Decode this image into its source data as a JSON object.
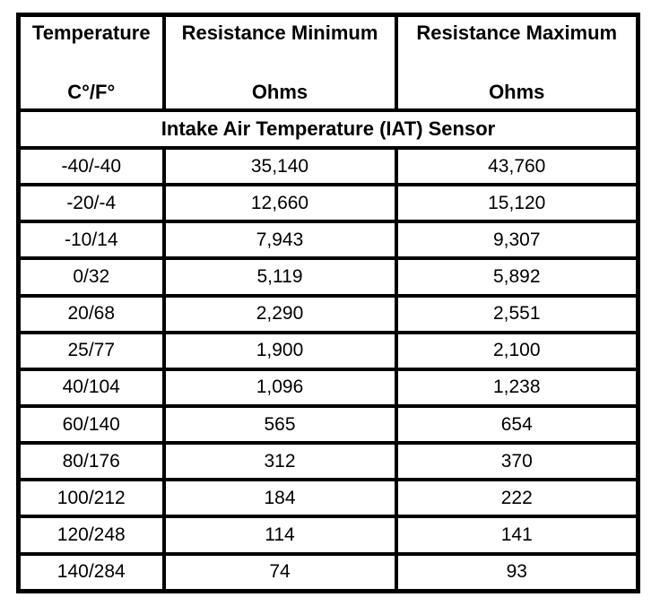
{
  "page": {
    "background_color": "#ffffff",
    "text_color": "#000000",
    "border_color": "#000000"
  },
  "chart_data": {
    "type": "table",
    "title": "Intake Air Temperature (IAT) Sensor",
    "columns": [
      {
        "title": "Temperature",
        "unit": "C°/F°"
      },
      {
        "title": "Resistance Minimum",
        "unit": "Ohms"
      },
      {
        "title": "Resistance Maximum",
        "unit": "Ohms"
      }
    ],
    "rows": [
      [
        "-40/-40",
        "35,140",
        "43,760"
      ],
      [
        "-20/-4",
        "12,660",
        "15,120"
      ],
      [
        "-10/14",
        "7,943",
        "9,307"
      ],
      [
        "0/32",
        "5,119",
        "5,892"
      ],
      [
        "20/68",
        "2,290",
        "2,551"
      ],
      [
        "25/77",
        "1,900",
        "2,100"
      ],
      [
        "40/104",
        "1,096",
        "1,238"
      ],
      [
        "60/140",
        "565",
        "654"
      ],
      [
        "80/176",
        "312",
        "370"
      ],
      [
        "100/212",
        "184",
        "222"
      ],
      [
        "120/248",
        "114",
        "141"
      ],
      [
        "140/284",
        "74",
        "93"
      ]
    ],
    "numeric": {
      "temperature_c": [
        -40,
        -20,
        -10,
        0,
        20,
        25,
        40,
        60,
        80,
        100,
        120,
        140
      ],
      "temperature_f": [
        -40,
        -4,
        14,
        32,
        68,
        77,
        104,
        140,
        176,
        212,
        248,
        284
      ],
      "resistance_min_ohms": [
        35140,
        12660,
        7943,
        5119,
        2290,
        1900,
        1096,
        565,
        312,
        184,
        114,
        74
      ],
      "resistance_max_ohms": [
        43760,
        15120,
        9307,
        5892,
        2551,
        2100,
        1238,
        654,
        370,
        222,
        141,
        93
      ]
    },
    "layout": {
      "grid": true,
      "header_bold": true,
      "values_centered": true
    }
  }
}
